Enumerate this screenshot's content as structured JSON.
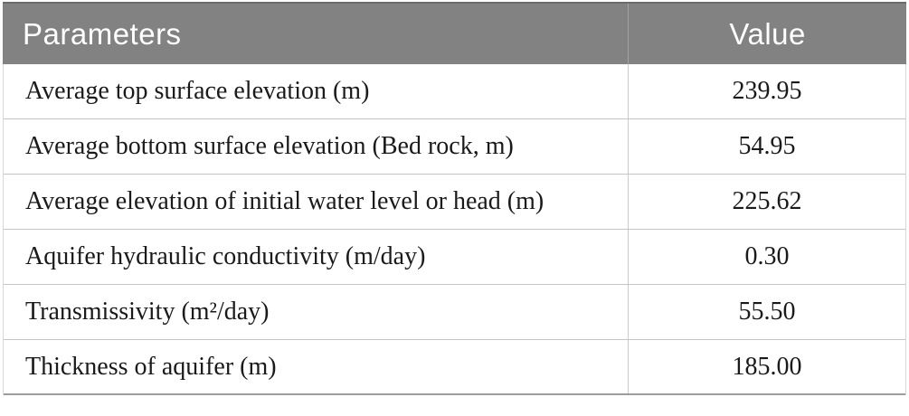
{
  "chart_data": {
    "type": "table",
    "title": "",
    "columns": [
      "Parameters",
      "Value"
    ],
    "rows": [
      [
        "Average top surface elevation (m)",
        239.95
      ],
      [
        "Average bottom surface elevation (Bed rock, m)",
        54.95
      ],
      [
        "Average elevation of initial water level or head (m)",
        225.62
      ],
      [
        "Aquifer hydraulic conductivity (m/day)",
        0.3
      ],
      [
        "Transmissivity (m²/day)",
        55.5
      ],
      [
        "Thickness of aquifer (m)",
        185.0
      ]
    ]
  },
  "table": {
    "header": {
      "parameters_label": "Parameters",
      "value_label": "Value"
    },
    "rows": [
      {
        "parameter": "Average top surface elevation (m)",
        "value": "239.95"
      },
      {
        "parameter": "Average bottom surface elevation (Bed rock, m)",
        "value": "54.95"
      },
      {
        "parameter": "Average elevation of initial water level or head (m)",
        "value": "225.62"
      },
      {
        "parameter": "Aquifer hydraulic conductivity (m/day)",
        "value": "0.30"
      },
      {
        "parameter": "Transmissivity (m²/day)",
        "value": "55.50"
      },
      {
        "parameter": "Thickness of aquifer (m)",
        "value": "185.00"
      }
    ],
    "colors": {
      "header_background": "#828282",
      "header_text": "#ffffff",
      "body_text": "#1a1a1a",
      "row_separator": "#c4c4c4",
      "bottom_border": "#9c9c9c"
    }
  }
}
